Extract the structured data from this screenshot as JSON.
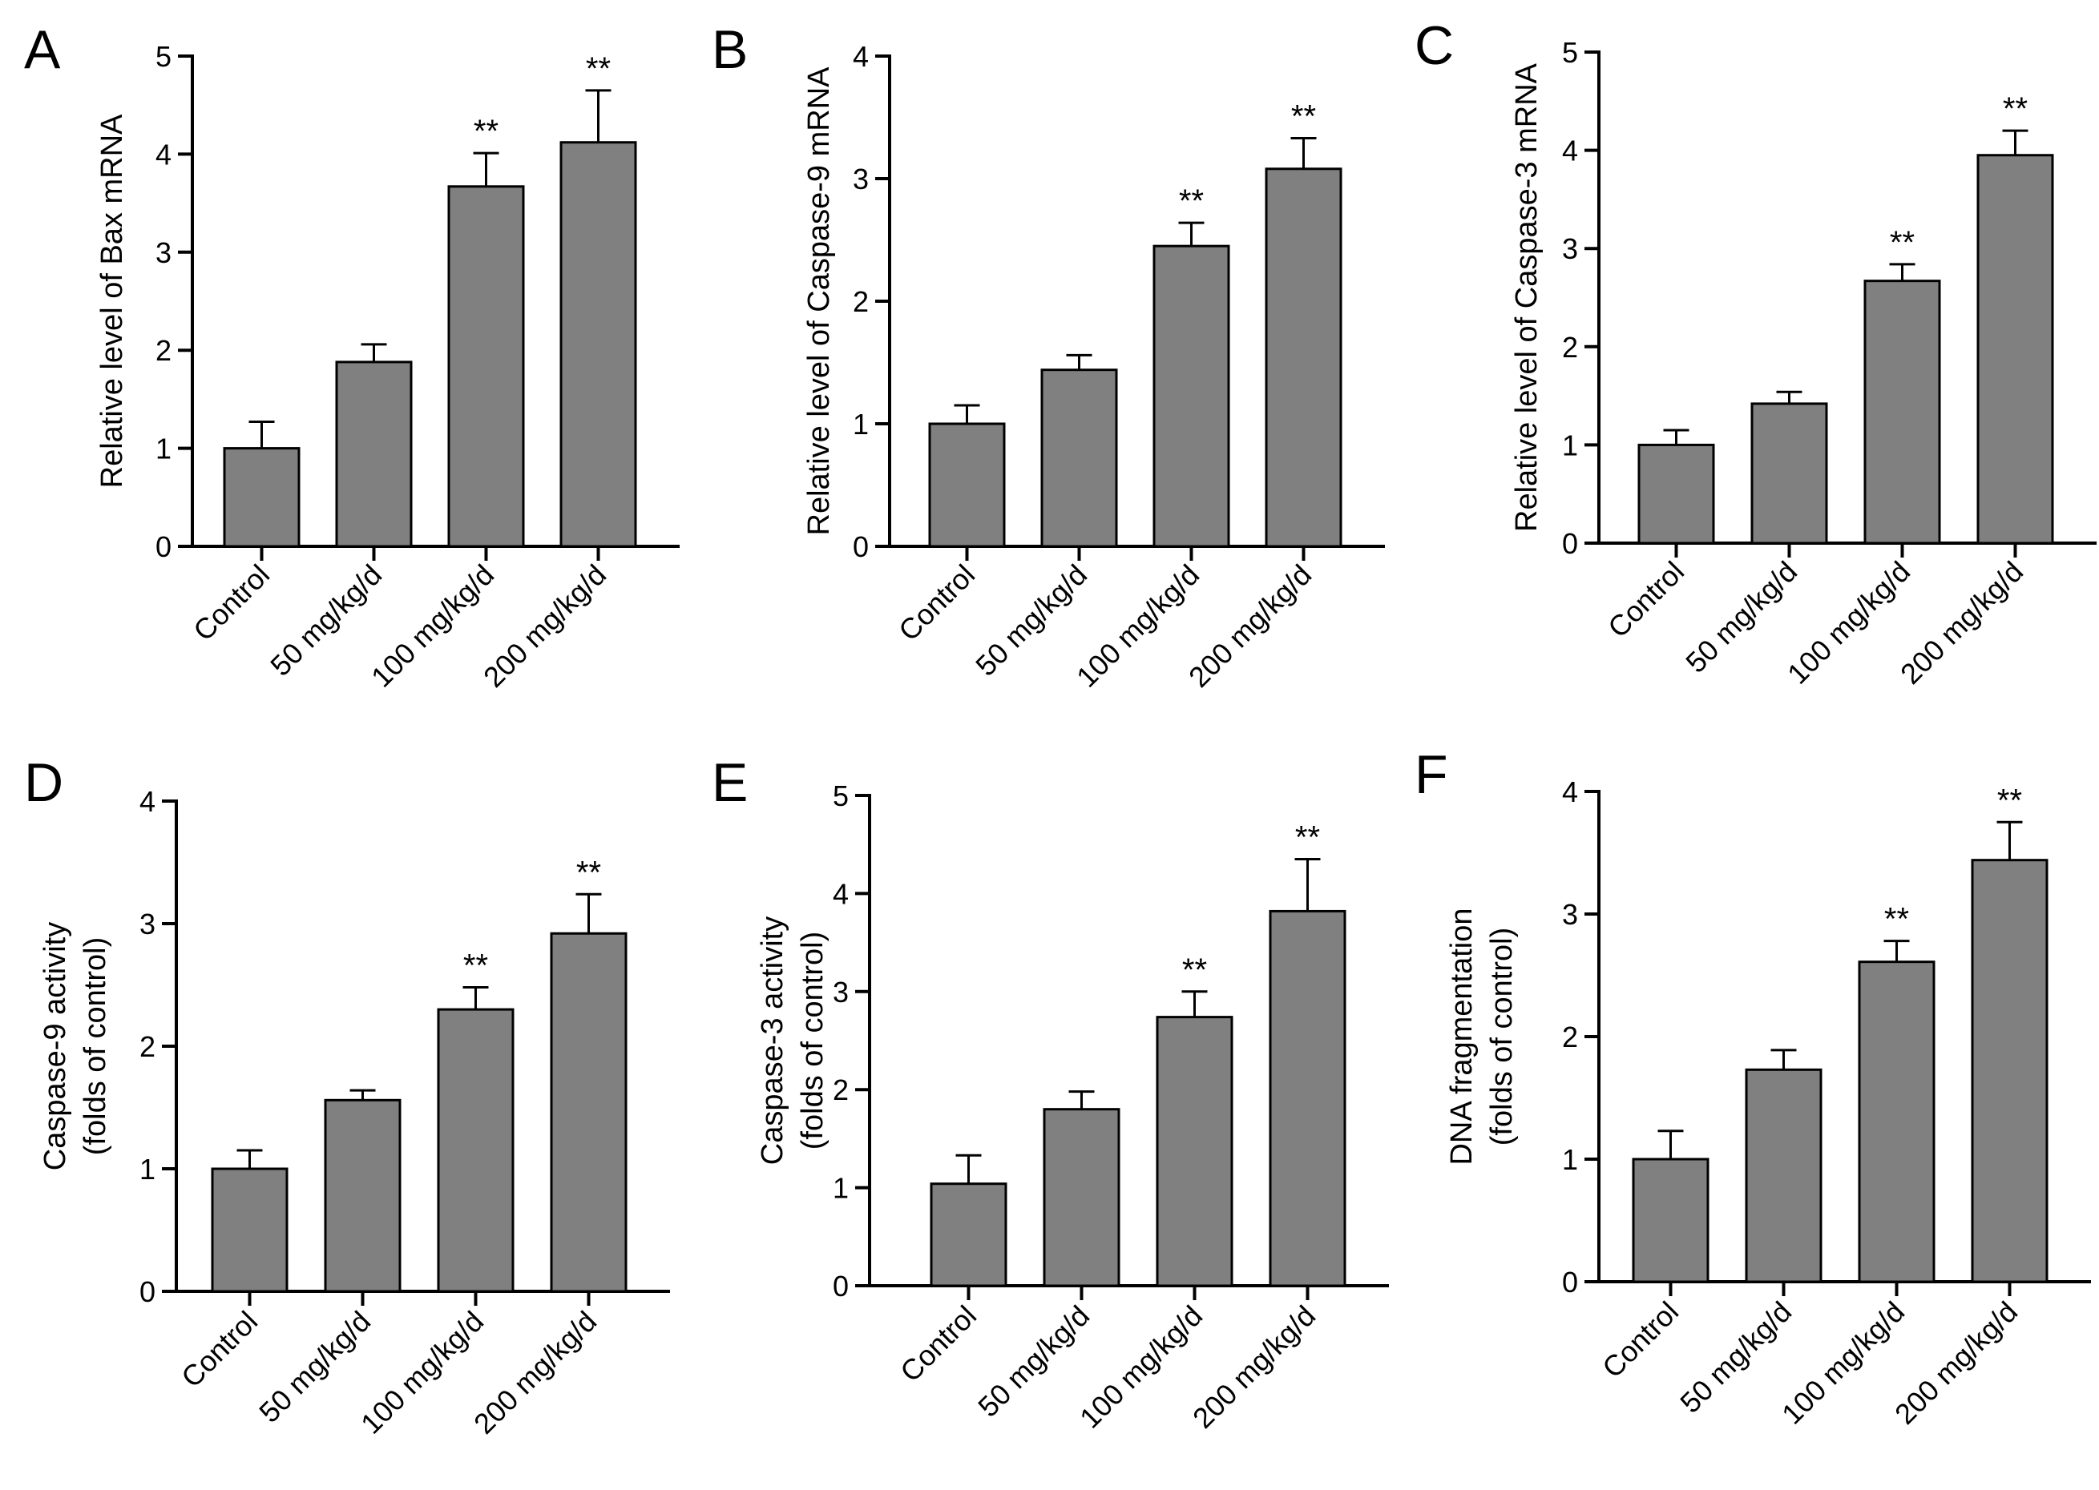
{
  "chart_data": [
    {
      "type": "bar",
      "panel": "A",
      "categories": [
        "Control",
        "50 mg/kg/d",
        "100 mg/kg/d",
        "200 mg/kg/d"
      ],
      "values": [
        1.0,
        1.88,
        3.67,
        4.12
      ],
      "errors": [
        0.27,
        0.18,
        0.34,
        0.53
      ],
      "significance": [
        "",
        "",
        "**",
        "**"
      ],
      "ylabel": [
        "Relative level of Bax mRNA"
      ],
      "ylim": [
        0,
        5
      ],
      "yticks": [
        0,
        1,
        2,
        3,
        4,
        5
      ],
      "bar_color": "#808080"
    },
    {
      "type": "bar",
      "panel": "B",
      "categories": [
        "Control",
        "50 mg/kg/d",
        "100 mg/kg/d",
        "200 mg/kg/d"
      ],
      "values": [
        1.0,
        1.44,
        2.45,
        3.08
      ],
      "errors": [
        0.15,
        0.12,
        0.19,
        0.25
      ],
      "significance": [
        "",
        "",
        "**",
        "**"
      ],
      "ylabel": [
        "Relative level of Caspase-9 mRNA"
      ],
      "ylim": [
        0,
        4
      ],
      "yticks": [
        0,
        1,
        2,
        3,
        4
      ],
      "bar_color": "#808080"
    },
    {
      "type": "bar",
      "panel": "C",
      "categories": [
        "Control",
        "50 mg/kg/d",
        "100 mg/kg/d",
        "200 mg/kg/d"
      ],
      "values": [
        1.0,
        1.42,
        2.67,
        3.95
      ],
      "errors": [
        0.15,
        0.12,
        0.17,
        0.25
      ],
      "significance": [
        "",
        "",
        "**",
        "**"
      ],
      "ylabel": [
        "Relative level of Caspase-3 mRNA"
      ],
      "ylim": [
        0,
        5
      ],
      "yticks": [
        0,
        1,
        2,
        3,
        4,
        5
      ],
      "bar_color": "#808080"
    },
    {
      "type": "bar",
      "panel": "D",
      "categories": [
        "Control",
        "50 mg/kg/d",
        "100 mg/kg/d",
        "200 mg/kg/d"
      ],
      "values": [
        1.0,
        1.56,
        2.3,
        2.92
      ],
      "errors": [
        0.15,
        0.08,
        0.18,
        0.32
      ],
      "significance": [
        "",
        "",
        "**",
        "**"
      ],
      "ylabel": [
        "Caspase-9 activity",
        "(folds of control)"
      ],
      "ylim": [
        0,
        4
      ],
      "yticks": [
        0,
        1,
        2,
        3,
        4
      ],
      "bar_color": "#808080"
    },
    {
      "type": "bar",
      "panel": "E",
      "categories": [
        "Control",
        "50 mg/kg/d",
        "100 mg/kg/d",
        "200 mg/kg/d"
      ],
      "values": [
        1.04,
        1.8,
        2.74,
        3.82
      ],
      "errors": [
        0.29,
        0.18,
        0.26,
        0.53
      ],
      "significance": [
        "",
        "",
        "**",
        "**"
      ],
      "ylabel": [
        "Caspase-3 activity",
        "(folds of control)"
      ],
      "ylim": [
        0,
        5
      ],
      "yticks": [
        0,
        1,
        2,
        3,
        4,
        5
      ],
      "bar_color": "#808080"
    },
    {
      "type": "bar",
      "panel": "F",
      "categories": [
        "Control",
        "50 mg/kg/d",
        "100 mg/kg/d",
        "200 mg/kg/d"
      ],
      "values": [
        1.0,
        1.73,
        2.61,
        3.44
      ],
      "errors": [
        0.23,
        0.16,
        0.17,
        0.31
      ],
      "significance": [
        "",
        "",
        "**",
        "**"
      ],
      "ylabel": [
        "DNA fragmentation",
        "(folds of control)"
      ],
      "ylim": [
        0,
        4
      ],
      "yticks": [
        0,
        1,
        2,
        3,
        4
      ],
      "bar_color": "#808080"
    }
  ]
}
